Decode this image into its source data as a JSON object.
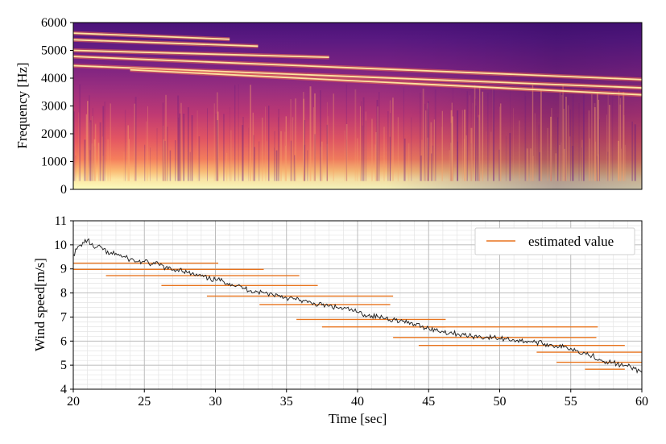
{
  "chart_data": [
    {
      "type": "heatmap",
      "panel": "spectrogram",
      "title": "",
      "xlabel": "",
      "ylabel": "Frequency [Hz]",
      "xlim": [
        20,
        60
      ],
      "ylim": [
        0,
        6000
      ],
      "yticks": [
        0,
        1000,
        2000,
        3000,
        4000,
        5000,
        6000
      ],
      "colormap": "magma",
      "harmonic_bands_hz": [
        {
          "start_hz": 5620,
          "end_hz": 5400,
          "t_start": 20,
          "t_end": 31
        },
        {
          "start_hz": 5380,
          "end_hz": 5150,
          "t_start": 20,
          "t_end": 33
        },
        {
          "start_hz": 5000,
          "end_hz": 4750,
          "t_start": 20,
          "t_end": 38
        },
        {
          "start_hz": 4780,
          "end_hz": 3950,
          "t_start": 20,
          "t_end": 60
        },
        {
          "start_hz": 4450,
          "end_hz": 3650,
          "t_start": 20,
          "t_end": 60
        },
        {
          "start_hz": 4300,
          "end_hz": 3400,
          "t_start": 24,
          "t_end": 60
        }
      ]
    },
    {
      "type": "line",
      "panel": "wind-speed",
      "title": "",
      "xlabel": "Time [sec]",
      "ylabel": "Wind speed[m/s]",
      "xlim": [
        20,
        60
      ],
      "ylim": [
        4,
        11
      ],
      "xticks": [
        20,
        25,
        30,
        35,
        40,
        45,
        50,
        55,
        60
      ],
      "yticks": [
        4,
        5,
        6,
        7,
        8,
        9,
        10,
        11
      ],
      "grid": true,
      "minor_grid": true,
      "legend_position": "top-right",
      "series": [
        {
          "name": "",
          "style": "line",
          "color": "#1a1a1a",
          "x": [
            20,
            20.5,
            21,
            21.5,
            22,
            22.5,
            23,
            23.5,
            24,
            24.5,
            25,
            25.5,
            26,
            26.5,
            27,
            27.5,
            28,
            28.5,
            29,
            29.5,
            30,
            30.5,
            31,
            31.5,
            32,
            32.5,
            33,
            33.5,
            34,
            34.5,
            35,
            35.5,
            36,
            36.5,
            37,
            37.5,
            38,
            38.5,
            39,
            39.5,
            40,
            40.5,
            41,
            41.5,
            42,
            42.5,
            43,
            43.5,
            44,
            44.5,
            45,
            45.5,
            46,
            46.5,
            47,
            47.5,
            48,
            48.5,
            49,
            49.5,
            50,
            50.5,
            51,
            51.5,
            52,
            52.5,
            53,
            53.5,
            54,
            54.5,
            55,
            55.5,
            56,
            56.5,
            57,
            57.5,
            58,
            58.5,
            59,
            59.5,
            60
          ],
          "y": [
            9.6,
            10.0,
            10.2,
            9.85,
            9.9,
            9.6,
            9.65,
            9.5,
            9.4,
            9.3,
            9.3,
            9.2,
            9.2,
            9.05,
            8.95,
            9.0,
            8.85,
            8.75,
            8.7,
            8.6,
            8.55,
            8.5,
            8.4,
            8.3,
            8.2,
            8.1,
            8.05,
            8.0,
            7.95,
            7.9,
            7.8,
            7.75,
            7.7,
            7.6,
            7.55,
            7.5,
            7.45,
            7.4,
            7.35,
            7.3,
            7.2,
            7.1,
            7.05,
            7.0,
            6.95,
            6.9,
            6.85,
            6.75,
            6.7,
            6.6,
            6.55,
            6.45,
            6.4,
            6.35,
            6.3,
            6.25,
            6.2,
            6.2,
            6.15,
            6.15,
            6.1,
            6.1,
            6.05,
            6.0,
            6.0,
            5.95,
            5.9,
            5.85,
            5.8,
            5.75,
            5.7,
            5.6,
            5.5,
            5.4,
            5.25,
            5.15,
            5.1,
            5.0,
            4.95,
            4.85,
            4.7
          ]
        },
        {
          "name": "estimated value",
          "style": "segments",
          "color": "#e8741e",
          "segments": [
            {
              "x0": 20.0,
              "x1": 30.2,
              "y": 9.24
            },
            {
              "x0": 20.0,
              "x1": 33.4,
              "y": 8.98
            },
            {
              "x0": 22.3,
              "x1": 35.9,
              "y": 8.72
            },
            {
              "x0": 26.2,
              "x1": 37.2,
              "y": 8.31
            },
            {
              "x0": 29.4,
              "x1": 42.5,
              "y": 7.87
            },
            {
              "x0": 33.1,
              "x1": 42.3,
              "y": 7.52
            },
            {
              "x0": 35.7,
              "x1": 46.2,
              "y": 6.9
            },
            {
              "x0": 37.5,
              "x1": 46.2,
              "y": 6.59
            },
            {
              "x0": 42.6,
              "x1": 56.9,
              "y": 6.59
            },
            {
              "x0": 42.5,
              "x1": 56.8,
              "y": 6.15
            },
            {
              "x0": 44.3,
              "x1": 58.8,
              "y": 5.82
            },
            {
              "x0": 52.6,
              "x1": 60.0,
              "y": 5.54
            },
            {
              "x0": 54.0,
              "x1": 60.0,
              "y": 5.12
            },
            {
              "x0": 56.0,
              "x1": 58.8,
              "y": 4.83
            }
          ]
        }
      ]
    }
  ]
}
